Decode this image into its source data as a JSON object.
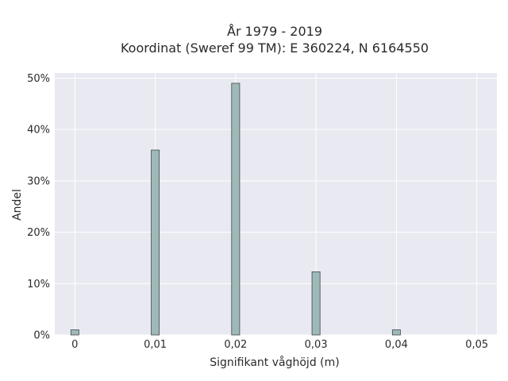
{
  "chart_data": {
    "type": "bar",
    "title_lines": [
      "År 1979 - 2019",
      "Koordinat (Sweref 99 TM): E 360224, N 6164550"
    ],
    "xlabel": "Signifikant våghöjd (m)",
    "ylabel": "Andel",
    "x": [
      0,
      0.01,
      0.02,
      0.03,
      0.04
    ],
    "values": [
      1,
      36,
      49,
      12.3,
      1
    ],
    "bin_width": 0.001,
    "xlim": [
      -0.0025,
      0.0525
    ],
    "ylim": [
      0,
      51
    ],
    "x_ticks": [
      0,
      0.01,
      0.02,
      0.03,
      0.04,
      0.05
    ],
    "x_tick_labels": [
      "0",
      "0,01",
      "0,02",
      "0,03",
      "0,04",
      "0,05"
    ],
    "y_ticks": [
      0,
      10,
      20,
      30,
      40,
      50
    ],
    "y_tick_labels": [
      "0%",
      "10%",
      "20%",
      "30%",
      "40%",
      "50%"
    ],
    "grid": true,
    "colors": {
      "bar_fill": "#9fb8b8",
      "bar_edge": "#3e4a4a",
      "plot_bg": "#e9e9f2",
      "grid": "#ffffff"
    }
  }
}
